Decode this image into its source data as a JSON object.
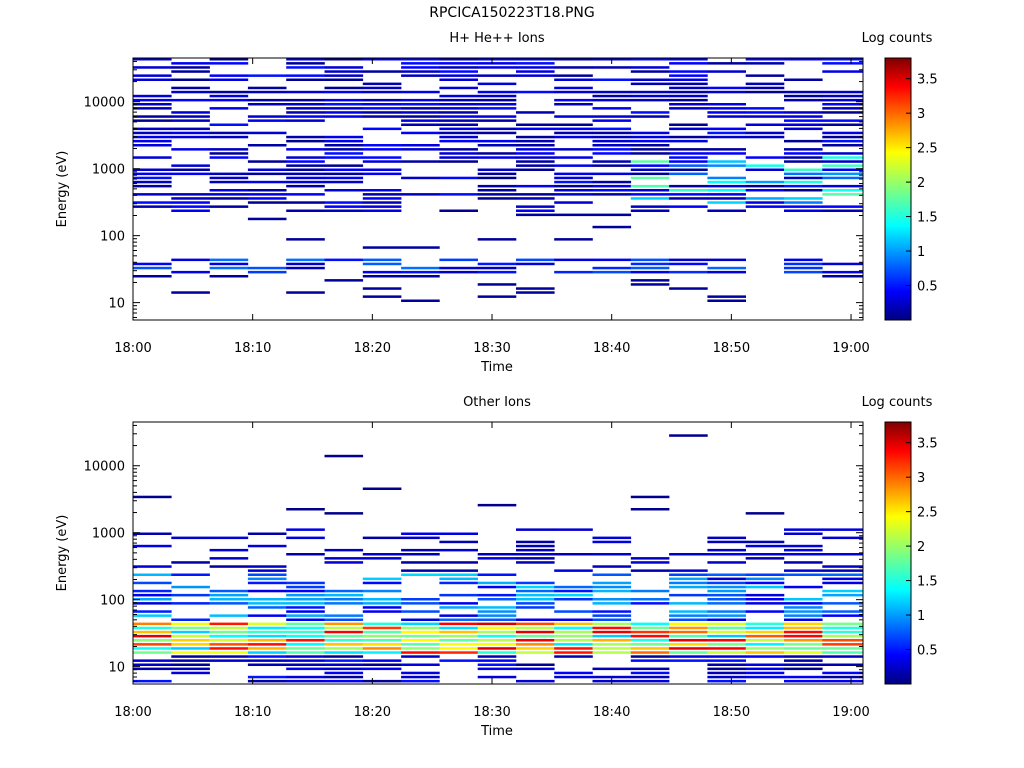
{
  "title": "RPCICA150223T18.PNG",
  "colors": {
    "frame": "#000000",
    "background": "#ffffff"
  },
  "chart_data": [
    {
      "type": "heatmap",
      "title": "H+ He++ Ions",
      "xlabel": "Time",
      "ylabel": "Energy (eV)",
      "x_ticks": [
        "18:00",
        "18:10",
        "18:20",
        "18:30",
        "18:40",
        "18:50",
        "19:00"
      ],
      "y_ticks": [
        "10",
        "100",
        "1000",
        "10000"
      ],
      "y_scale": "log",
      "ylim": [
        5.5,
        45000
      ],
      "xlim_minutes": [
        0,
        61
      ],
      "colorbar": {
        "label": "Log counts",
        "ticks": [
          "0.5",
          "1",
          "1.5",
          "2",
          "2.5",
          "3",
          "3.5"
        ],
        "range": [
          0,
          3.8
        ]
      },
      "time_bins_minutes": [
        0,
        3.2,
        6.4,
        9.6,
        12.8,
        16,
        19.2,
        22.4,
        25.6,
        28.8,
        32,
        35.2,
        38.4,
        41.6,
        44.8,
        48,
        51.2,
        54.4,
        57.6,
        61
      ],
      "energy_profile": "hplus"
    },
    {
      "type": "heatmap",
      "title": "Other Ions",
      "xlabel": "Time",
      "ylabel": "Energy (eV)",
      "x_ticks": [
        "18:00",
        "18:10",
        "18:20",
        "18:30",
        "18:40",
        "18:50",
        "19:00"
      ],
      "y_ticks": [
        "10",
        "100",
        "1000",
        "10000"
      ],
      "y_scale": "log",
      "ylim": [
        5.5,
        45000
      ],
      "xlim_minutes": [
        0,
        61
      ],
      "colorbar": {
        "label": "Log counts",
        "ticks": [
          "0.5",
          "1",
          "1.5",
          "2",
          "2.5",
          "3",
          "3.5"
        ],
        "range": [
          0,
          3.8
        ]
      },
      "time_bins_minutes": [
        0,
        3.2,
        6.4,
        9.6,
        12.8,
        16,
        19.2,
        22.4,
        25.6,
        28.8,
        32,
        35.2,
        38.4,
        41.6,
        44.8,
        48,
        51.2,
        54.4,
        57.6,
        61
      ],
      "energy_profile": "other"
    }
  ]
}
